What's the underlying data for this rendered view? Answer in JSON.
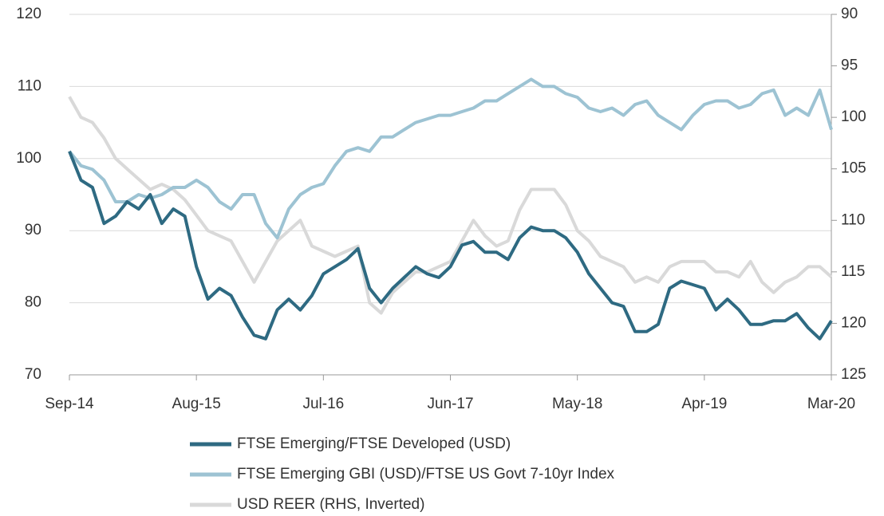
{
  "chart_data": {
    "type": "line",
    "categories": [
      "Sep-14",
      null,
      null,
      null,
      null,
      null,
      null,
      null,
      null,
      null,
      null,
      "Aug-15",
      null,
      null,
      null,
      null,
      null,
      null,
      null,
      null,
      null,
      null,
      "Jul-16",
      null,
      null,
      null,
      null,
      null,
      null,
      null,
      null,
      null,
      null,
      "Jun-17",
      null,
      null,
      null,
      null,
      null,
      null,
      null,
      null,
      null,
      null,
      "May-18",
      null,
      null,
      null,
      null,
      null,
      null,
      null,
      null,
      null,
      null,
      "Apr-19",
      null,
      null,
      null,
      null,
      null,
      null,
      null,
      null,
      null,
      null,
      "Mar-20"
    ],
    "series": [
      {
        "name": "FTSE Emerging/FTSE Developed (USD)",
        "color": "#2e6a82",
        "axis": "y",
        "values": [
          101,
          97,
          96,
          91,
          92,
          94,
          93,
          95,
          91,
          93,
          92,
          85,
          80.5,
          82,
          81,
          78,
          75.5,
          75,
          79,
          80.5,
          79,
          81,
          84,
          85,
          86,
          87.5,
          82,
          80,
          82,
          83.5,
          85,
          84,
          83.5,
          85,
          88,
          88.5,
          87,
          87,
          86,
          89,
          90.5,
          90,
          90,
          89,
          87,
          84,
          82,
          80,
          79.5,
          76,
          76,
          77,
          82,
          83,
          82.5,
          82,
          79,
          80.5,
          79,
          77,
          77,
          77.5,
          77.5,
          78.5,
          76.5,
          75,
          77.5
        ]
      },
      {
        "name": "FTSE Emerging GBI (USD)/FTSE US Govt 7-10yr Index",
        "color": "#9dc3d3",
        "axis": "y",
        "values": [
          101,
          99,
          98.5,
          97,
          94,
          94,
          95,
          94.5,
          95,
          96,
          96,
          97,
          96,
          94,
          93,
          95,
          95,
          91,
          89,
          93,
          95,
          96,
          96.5,
          99,
          101,
          101.5,
          101,
          103,
          103,
          104,
          105,
          105.5,
          106,
          106,
          106.5,
          107,
          108,
          108,
          109,
          110,
          111,
          110,
          110,
          109,
          108.5,
          107,
          106.5,
          107,
          106,
          107.5,
          108,
          106,
          105,
          104,
          106,
          107.5,
          108,
          108,
          107,
          107.5,
          109,
          109.5,
          106,
          107,
          106,
          109.5,
          104
        ]
      },
      {
        "name": "USD REER (RHS, Inverted)",
        "color": "#d9d9d9",
        "axis": "y2",
        "values": [
          98,
          100,
          100.5,
          102,
          104,
          105,
          106,
          107,
          106.5,
          107,
          108,
          109.5,
          111,
          111.5,
          112,
          114,
          116,
          114,
          112,
          111,
          110,
          112.5,
          113,
          113.5,
          113,
          112.5,
          118,
          119,
          117,
          116,
          115,
          115,
          114.5,
          114,
          112,
          110,
          111.5,
          112.5,
          112,
          109,
          107,
          107,
          107,
          108.5,
          111,
          112,
          113.5,
          114,
          114.5,
          116,
          115.5,
          116,
          114.5,
          114,
          114,
          114,
          115,
          115,
          115.5,
          114,
          116,
          117,
          116,
          115.5,
          114.5,
          114.5,
          115.5
        ]
      }
    ],
    "ylim": [
      70,
      120
    ],
    "yticks": [
      70,
      80,
      90,
      100,
      110,
      120
    ],
    "y2lim": [
      90,
      125
    ],
    "y2ticks": [
      90,
      95,
      100,
      105,
      110,
      115,
      120,
      125
    ],
    "y2_inverted": true,
    "grid": true,
    "legend": "bottom"
  }
}
